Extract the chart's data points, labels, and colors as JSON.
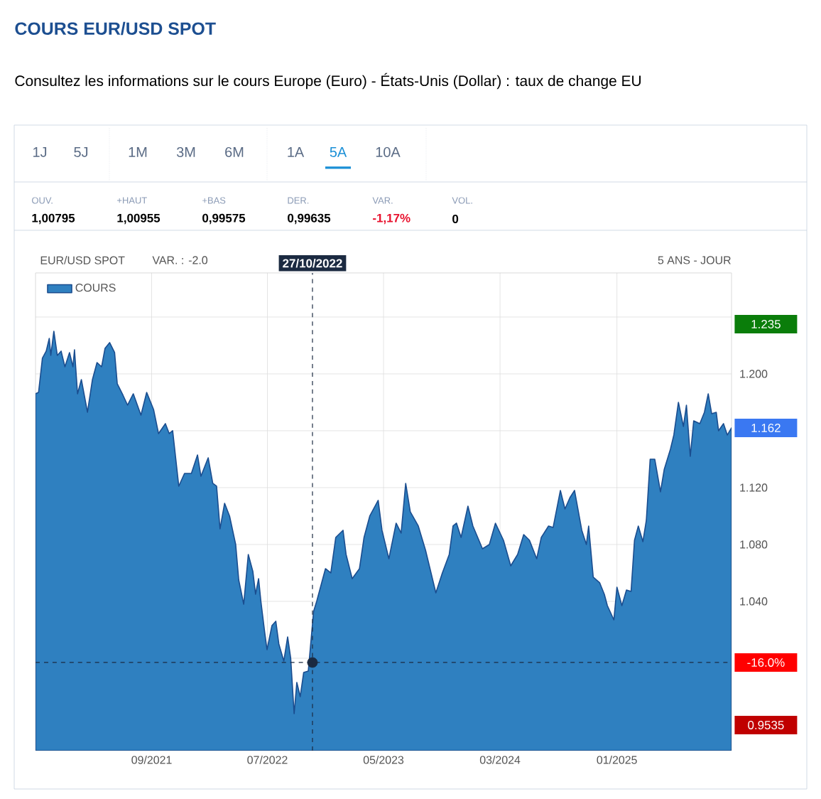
{
  "chart_data": {
    "type": "area",
    "title": "COURS EUR/USD SPOT",
    "subtitle": "Consultez les informations sur le cours Europe (Euro) - États-Unis (Dollar) : taux de change EU",
    "annotations": [
      "1J",
      "5J",
      "1M",
      "3M",
      "6M",
      "1A",
      "5A",
      "10A",
      "OUV.",
      "1,00795",
      "+HAUT",
      "1,00955",
      "+BAS",
      "0,99575",
      "DER.",
      "0,99635",
      "VAR.",
      "-1,17%",
      "VOL.",
      "0",
      "EUR/USD SPOT",
      "VAR. : -2.0",
      "5 ANS - JOUR",
      "1.235",
      "1.162",
      "0.9535",
      "-16.0%"
    ],
    "x": [
      "2020-11-01",
      "2020-11-09",
      "2020-11-19",
      "2020-11-29",
      "2020-12-07",
      "2020-12-11",
      "2020-12-19",
      "2020-12-28",
      "2021-01-07",
      "2021-01-17",
      "2021-01-29",
      "2021-02-07",
      "2021-02-11",
      "2021-02-19",
      "2021-03-01",
      "2021-03-17",
      "2021-03-30",
      "2021-04-11",
      "2021-04-23",
      "2021-05-02",
      "2021-05-14",
      "2021-05-27",
      "2021-06-03",
      "2021-06-18",
      "2021-06-30",
      "2021-07-15",
      "2021-08-04",
      "2021-08-19",
      "2021-09-06",
      "2021-09-19",
      "2021-10-07",
      "2021-10-17",
      "2021-10-26",
      "2021-11-11",
      "2021-11-26",
      "2021-12-14",
      "2021-12-30",
      "2022-01-08",
      "2022-01-27",
      "2022-02-08",
      "2022-02-18",
      "2022-02-27",
      "2022-03-11",
      "2022-03-24",
      "2022-04-09",
      "2022-04-17",
      "2022-04-30",
      "2022-05-12",
      "2022-05-24",
      "2022-05-31",
      "2022-06-08",
      "2022-06-14",
      "2022-06-24",
      "2022-06-30",
      "2022-07-13",
      "2022-07-23",
      "2022-07-31",
      "2022-08-13",
      "2022-08-23",
      "2022-08-31",
      "2022-09-09",
      "2022-09-16",
      "2022-09-25",
      "2022-10-04",
      "2022-10-16",
      "2022-10-30",
      "2022-11-07",
      "2022-11-20",
      "2022-11-30",
      "2022-12-14",
      "2022-12-27",
      "2023-01-15",
      "2023-01-23",
      "2023-02-08",
      "2023-02-27",
      "2023-03-11",
      "2023-03-26",
      "2023-04-17",
      "2023-04-27",
      "2023-05-15",
      "2023-06-03",
      "2023-06-16",
      "2023-06-28",
      "2023-07-10",
      "2023-07-31",
      "2023-08-19",
      "2023-09-15",
      "2023-10-02",
      "2023-10-20",
      "2023-10-30",
      "2023-11-08",
      "2023-11-20",
      "2023-12-08",
      "2023-12-21",
      "2024-01-15",
      "2024-02-02",
      "2024-02-18",
      "2024-03-10",
      "2024-03-29",
      "2024-04-16",
      "2024-05-02",
      "2024-05-17",
      "2024-06-05",
      "2024-06-17",
      "2024-07-06",
      "2024-07-18",
      "2024-08-06",
      "2024-08-18",
      "2024-08-31",
      "2024-09-12",
      "2024-10-01",
      "2024-10-13",
      "2024-10-19",
      "2024-10-31",
      "2024-11-17",
      "2024-11-29",
      "2024-12-07",
      "2024-12-24",
      "2025-01-01",
      "2025-01-14",
      "2025-01-26",
      "2025-02-07",
      "2025-02-16",
      "2025-02-26",
      "2025-03-10",
      "2025-03-19",
      "2025-03-29",
      "2025-04-10",
      "2025-04-25",
      "2025-05-05",
      "2025-05-21",
      "2025-05-30",
      "2025-06-11",
      "2025-06-24",
      "2025-07-02",
      "2025-07-12",
      "2025-07-21",
      "2025-08-06",
      "2025-08-18",
      "2025-08-28",
      "2025-09-06",
      "2025-09-18",
      "2025-09-24",
      "2025-10-07",
      "2025-10-17",
      "2025-10-28"
    ],
    "series": [
      {
        "name": "COURS",
        "color": "#2f80c0",
        "values": [
          1.186,
          1.187,
          1.211,
          1.216,
          1.225,
          1.213,
          1.23,
          1.213,
          1.216,
          1.205,
          1.215,
          1.205,
          1.217,
          1.186,
          1.196,
          1.173,
          1.196,
          1.208,
          1.205,
          1.218,
          1.222,
          1.215,
          1.193,
          1.185,
          1.178,
          1.186,
          1.171,
          1.187,
          1.175,
          1.158,
          1.165,
          1.158,
          1.16,
          1.121,
          1.13,
          1.13,
          1.143,
          1.128,
          1.141,
          1.123,
          1.121,
          1.091,
          1.109,
          1.1,
          1.08,
          1.055,
          1.038,
          1.073,
          1.061,
          1.045,
          1.056,
          1.04,
          1.018,
          1.006,
          1.023,
          1.026,
          1.01,
          0.998,
          1.015,
          1.0,
          0.961,
          0.983,
          0.973,
          0.99,
          0.991,
          1.033,
          1.04,
          1.053,
          1.063,
          1.06,
          1.085,
          1.09,
          1.073,
          1.056,
          1.063,
          1.085,
          1.1,
          1.111,
          1.09,
          1.07,
          1.095,
          1.088,
          1.123,
          1.103,
          1.093,
          1.076,
          1.046,
          1.06,
          1.073,
          1.093,
          1.095,
          1.085,
          1.107,
          1.093,
          1.077,
          1.08,
          1.095,
          1.083,
          1.065,
          1.073,
          1.087,
          1.083,
          1.07,
          1.085,
          1.093,
          1.092,
          1.118,
          1.105,
          1.113,
          1.118,
          1.09,
          1.08,
          1.093,
          1.057,
          1.053,
          1.045,
          1.037,
          1.027,
          1.05,
          1.037,
          1.048,
          1.047,
          1.083,
          1.093,
          1.082,
          1.097,
          1.14,
          1.14,
          1.117,
          1.133,
          1.147,
          1.157,
          1.18,
          1.163,
          1.178,
          1.142,
          1.167,
          1.165,
          1.173,
          1.186,
          1.172,
          1.173,
          1.16,
          1.165,
          1.157,
          1.162
        ]
      },
      {
        "type": "scatter",
        "x": [
          "2022-10-27"
        ],
        "values": [
          0.997
        ],
        "color": "#1b2a41"
      }
    ],
    "xlim": [
      "2020-11-01",
      "2025-10-28"
    ],
    "xticks": [
      {
        "value": "2021-09-01",
        "label": "09/2021"
      },
      {
        "value": "2022-07-01",
        "label": "07/2022"
      },
      {
        "value": "2023-05-01",
        "label": "05/2023"
      },
      {
        "value": "2024-03-01",
        "label": "03/2024"
      },
      {
        "value": "2025-01-01",
        "label": "01/2025"
      }
    ],
    "ylim": [
      0.935,
      1.271
    ],
    "yticks": [
      {
        "value": 0.96,
        "label": null
      },
      {
        "value": 1.0,
        "label": null
      },
      {
        "value": 1.04,
        "label": "1.040"
      },
      {
        "value": 1.08,
        "label": "1.080"
      },
      {
        "value": 1.12,
        "label": "1.120"
      },
      {
        "value": 1.16,
        "label": null
      },
      {
        "value": 1.2,
        "label": "1.200"
      },
      {
        "value": 1.24,
        "label": null
      }
    ],
    "ref_lines": [
      {
        "axis": "x",
        "value": "2022-10-27",
        "label": "27/10/2022",
        "color": "#1b2a41",
        "line_style": "dashed"
      },
      {
        "axis": "y",
        "value": 0.997,
        "color": "#1b2a41",
        "line_style": "dashed"
      }
    ],
    "grid": true,
    "legend": "top left"
  }
}
